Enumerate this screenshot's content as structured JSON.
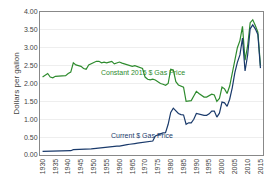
{
  "chart_data": {
    "type": "line",
    "title": "",
    "ylabel": "Dollars per gallon",
    "x": [
      1930,
      1931,
      1932,
      1933,
      1934,
      1935,
      1936,
      1937,
      1938,
      1939,
      1940,
      1941,
      1942,
      1943,
      1944,
      1945,
      1946,
      1947,
      1948,
      1949,
      1950,
      1951,
      1952,
      1953,
      1954,
      1955,
      1956,
      1957,
      1958,
      1959,
      1960,
      1961,
      1962,
      1963,
      1964,
      1965,
      1966,
      1967,
      1968,
      1969,
      1970,
      1971,
      1972,
      1973,
      1974,
      1975,
      1976,
      1977,
      1978,
      1979,
      1980,
      1981,
      1982,
      1983,
      1984,
      1985,
      1986,
      1987,
      1988,
      1989,
      1990,
      1991,
      1992,
      1993,
      1994,
      1995,
      1996,
      1997,
      1998,
      1999,
      2000,
      2001,
      2002,
      2003,
      2004,
      2005,
      2006,
      2007,
      2008,
      2009,
      2010,
      2011,
      2012,
      2013,
      2014,
      2015
    ],
    "series": [
      {
        "color": "#2e8b2e",
        "values": [
          2.18,
          2.22,
          2.28,
          2.18,
          2.16,
          2.2,
          2.2,
          2.22,
          2.22,
          2.22,
          2.28,
          2.32,
          2.58,
          2.52,
          2.5,
          2.48,
          2.42,
          2.4,
          2.52,
          2.55,
          2.6,
          2.62,
          2.62,
          2.58,
          2.6,
          2.58,
          2.6,
          2.62,
          2.55,
          2.58,
          2.6,
          2.57,
          2.55,
          2.52,
          2.5,
          2.48,
          2.5,
          2.48,
          2.44,
          2.42,
          2.18,
          2.12,
          2.1,
          2.12,
          2.1,
          2.05,
          2.0,
          1.98,
          1.95,
          2.0,
          2.4,
          2.38,
          2.05,
          1.96,
          1.93,
          1.9,
          1.5,
          1.52,
          1.52,
          1.65,
          1.78,
          1.72,
          1.68,
          1.62,
          1.62,
          1.65,
          1.7,
          1.68,
          1.5,
          1.58,
          1.9,
          1.85,
          1.72,
          1.93,
          2.3,
          2.72,
          3.0,
          3.2,
          3.6,
          2.65,
          3.05,
          3.7,
          3.78,
          3.62,
          3.44,
          2.5
        ]
      },
      {
        "color": "#1a3a6b",
        "values": [
          0.1,
          0.1,
          0.1,
          0.1,
          0.1,
          0.1,
          0.1,
          0.1,
          0.1,
          0.1,
          0.11,
          0.12,
          0.15,
          0.15,
          0.15,
          0.15,
          0.15,
          0.15,
          0.16,
          0.17,
          0.18,
          0.19,
          0.2,
          0.2,
          0.21,
          0.21,
          0.22,
          0.24,
          0.24,
          0.25,
          0.25,
          0.27,
          0.28,
          0.29,
          0.3,
          0.3,
          0.32,
          0.33,
          0.34,
          0.35,
          0.36,
          0.36,
          0.36,
          0.39,
          0.53,
          0.57,
          0.59,
          0.62,
          0.63,
          0.86,
          1.19,
          1.31,
          1.22,
          1.16,
          1.13,
          1.12,
          0.86,
          0.9,
          0.9,
          1.0,
          1.16,
          1.14,
          1.13,
          1.11,
          1.11,
          1.15,
          1.23,
          1.23,
          1.06,
          1.17,
          1.48,
          1.46,
          1.36,
          1.56,
          1.88,
          2.3,
          2.59,
          2.8,
          3.27,
          2.35,
          2.79,
          3.53,
          3.64,
          3.53,
          3.37,
          2.43
        ]
      }
    ],
    "annotations": [
      {
        "text": "Constant 2015 $ Gas Price",
        "x": 1952,
        "y": 2.15,
        "color": "#2e8b2e"
      },
      {
        "text": "Current $ Gas Price",
        "x": 1956,
        "y": 0.4,
        "color": "#1a3a6b"
      }
    ],
    "xlim": [
      1929,
      2016
    ],
    "xticks": [
      1930,
      1935,
      1940,
      1945,
      1950,
      1955,
      1960,
      1965,
      1970,
      1975,
      1980,
      1985,
      1990,
      1995,
      2000,
      2005,
      2010,
      2015
    ],
    "ylim": [
      0.0,
      4.0
    ],
    "yticks": [
      {
        "value": 0.0,
        "label": "0.00"
      },
      {
        "value": 0.5,
        "label": "0.50"
      },
      {
        "value": 1.0,
        "label": "1.00"
      },
      {
        "value": 1.5,
        "label": "1.50"
      },
      {
        "value": 2.0,
        "label": "2.00"
      },
      {
        "value": 2.5,
        "label": "2.50"
      },
      {
        "value": 3.0,
        "label": "3.00"
      },
      {
        "value": 3.5,
        "label": "3.50"
      },
      {
        "value": 4.0,
        "label": "4.00"
      }
    ],
    "grid": "y"
  }
}
